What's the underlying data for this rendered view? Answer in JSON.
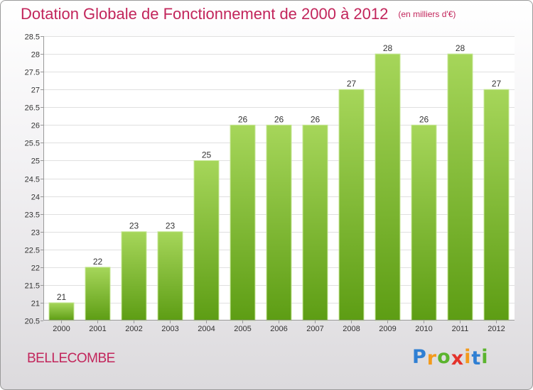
{
  "colors": {
    "title": "#c2255b",
    "bar_light": "#a6d65a",
    "bar_dark": "#5d9d14",
    "grid": "#e0e0e0",
    "axis_text": "#333333"
  },
  "brand": {
    "letters": [
      "P",
      "r",
      "o",
      "x",
      "i",
      "t",
      "i"
    ],
    "colors": [
      "#2f7fd3",
      "#f39a1c",
      "#5bb42e",
      "#e4322b",
      "#f39a1c",
      "#2f7fd3",
      "#5bb42e"
    ]
  },
  "commune": "BELLECOMBE",
  "chart_data": {
    "type": "bar",
    "title": "Dotation Globale de Fonctionnement de 2000 à 2012",
    "unit": "(en milliers d'€)",
    "categories": [
      "2000",
      "2001",
      "2002",
      "2003",
      "2004",
      "2005",
      "2006",
      "2007",
      "2008",
      "2009",
      "2010",
      "2011",
      "2012"
    ],
    "values": [
      21,
      22,
      23,
      23,
      25,
      26,
      26,
      26,
      27,
      28,
      26,
      28,
      27
    ],
    "labels": [
      "21",
      "22",
      "23",
      "23",
      "25",
      "26",
      "26",
      "26",
      "27",
      "28",
      "26",
      "28",
      "27"
    ],
    "ylim": [
      20.5,
      28.5
    ],
    "yticks": [
      "20.5",
      "21",
      "21.5",
      "22",
      "22.5",
      "23",
      "23.5",
      "24",
      "24.5",
      "25",
      "25.5",
      "26",
      "26.5",
      "27",
      "27.5",
      "28",
      "28.5"
    ],
    "xlabel": "",
    "ylabel": "",
    "grid": true
  }
}
